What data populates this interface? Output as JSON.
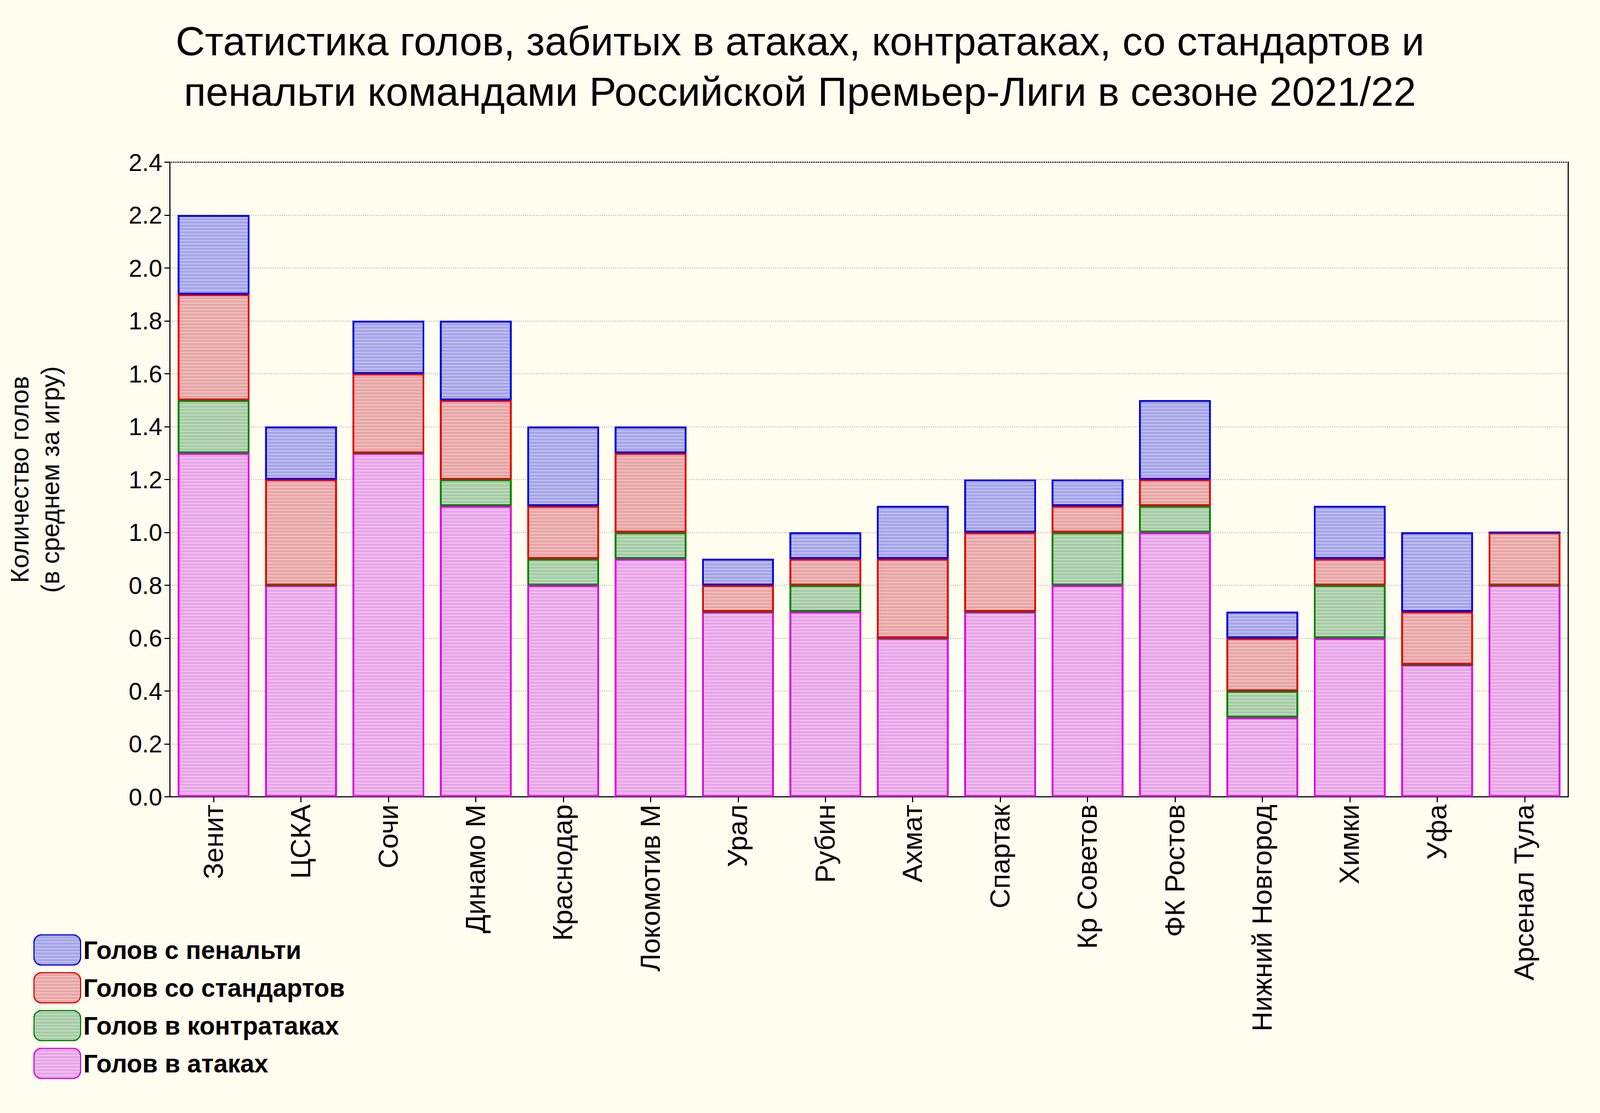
{
  "chart_data": {
    "type": "bar",
    "title": "Статистика голов, забитых в атаках, контратаках, со стандартов и\nпенальти командами Российской Премьер-Лиги в сезоне 2021/22",
    "y_label": "Количество голов\n(в среднем за игру)",
    "categories": [
      "Зенит",
      "ЦСКА",
      "Сочи",
      "Динамо М",
      "Краснодар",
      "Локомотив М",
      "Урал",
      "Рубин",
      "Ахмат",
      "Спартак",
      "Кр Советов",
      "ФК Ростов",
      "Нижний Новгород",
      "Химки",
      "Уфа",
      "Арсенал Тула"
    ],
    "series": [
      {
        "name": "Голов в атаках",
        "color": "#e000e0",
        "values": [
          1.3,
          0.8,
          1.3,
          1.1,
          0.8,
          0.9,
          0.7,
          0.7,
          0.6,
          0.7,
          0.8,
          1.0,
          0.3,
          0.6,
          0.5,
          0.8
        ]
      },
      {
        "name": "Голов в контратаках",
        "color": "#008000",
        "values": [
          0.2,
          0,
          0,
          0.1,
          0.1,
          0.1,
          0,
          0.1,
          0,
          0,
          0.2,
          0.1,
          0.1,
          0.2,
          0,
          0
        ]
      },
      {
        "name": "Голов со стандартов",
        "color": "#e00000",
        "values": [
          0.4,
          0.4,
          0.3,
          0.3,
          0.2,
          0.3,
          0.1,
          0.1,
          0.3,
          0.3,
          0.1,
          0.1,
          0.2,
          0.1,
          0.2,
          0.2
        ]
      },
      {
        "name": "Голов с пенальти",
        "color": "#0000e0",
        "values": [
          0.3,
          0.2,
          0.2,
          0.3,
          0.3,
          0.1,
          0.1,
          0.1,
          0.2,
          0.2,
          0.1,
          0.3,
          0.1,
          0.2,
          0.3,
          0
        ]
      }
    ],
    "stacked": true,
    "ylim": [
      0,
      2.4
    ],
    "yticks": [
      {
        "value": 0,
        "label": "0.0"
      },
      0.2,
      0.4,
      0.6,
      0.8,
      {
        "value": 1,
        "label": "1.0"
      },
      1.2,
      1.4,
      1.6,
      1.8,
      {
        "value": 2,
        "label": "2.0"
      },
      2.2,
      2.4
    ],
    "grid": true,
    "legend": "bottom-left"
  }
}
